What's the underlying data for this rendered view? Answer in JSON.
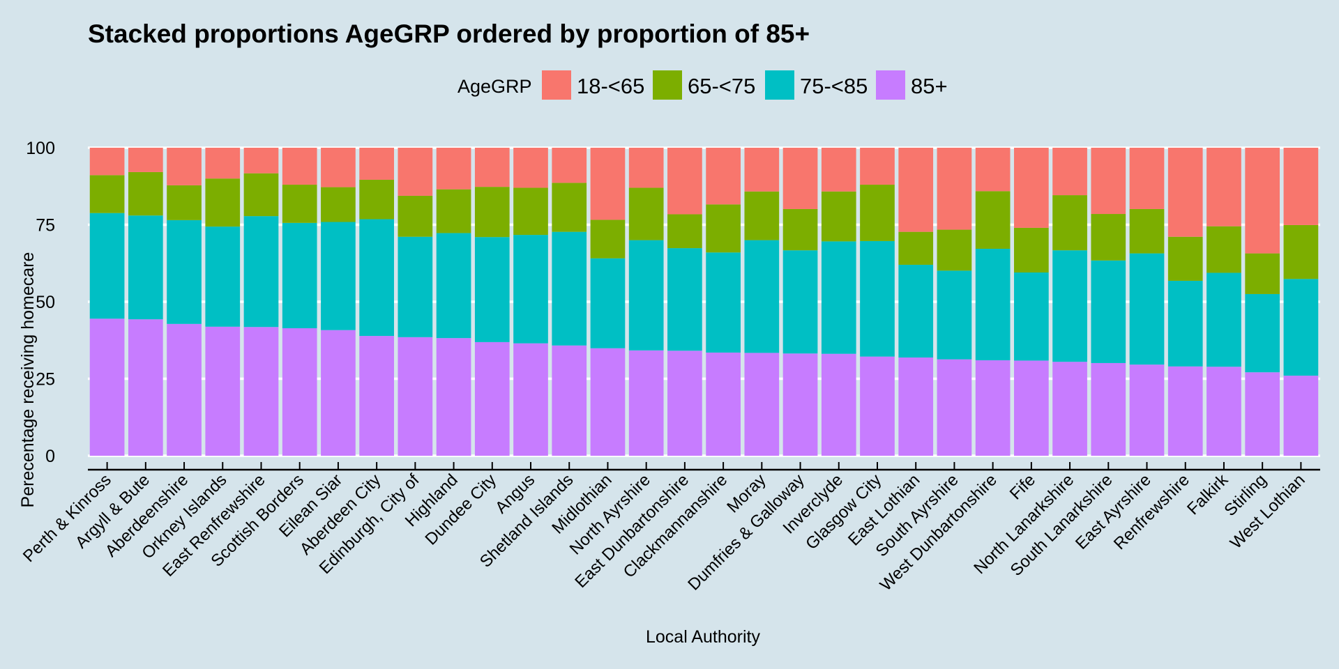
{
  "chart_data": {
    "type": "bar",
    "stacked": true,
    "title": "Stacked proportions AgeGRP ordered by proportion of 85+",
    "xlabel": "Local Authority",
    "ylabel": "Perecentage receiving homecare",
    "ylim": [
      0,
      100
    ],
    "yticks": [
      0,
      25,
      50,
      75,
      100
    ],
    "grid": true,
    "legend": {
      "title": "AgeGRP",
      "position": "top"
    },
    "categories": [
      "Perth & Kinross",
      "Argyll & Bute",
      "Aberdeenshire",
      "Orkney Islands",
      "East Renfrewshire",
      "Scottish Borders",
      "Eilean Siar",
      "Aberdeen City",
      "Edinburgh, City of",
      "Highland",
      "Dundee City",
      "Angus",
      "Shetland Islands",
      "Midlothian",
      "North Ayrshire",
      "East Dunbartonshire",
      "Clackmannanshire",
      "Moray",
      "Dumfries & Galloway",
      "Inverclyde",
      "Glasgow City",
      "East Lothian",
      "South Ayrshire",
      "West Dunbartonshire",
      "Fife",
      "North Lanarkshire",
      "South Lanarkshire",
      "East Ayrshire",
      "Renfrewshire",
      "Falkirk",
      "Stirling",
      "West Lothian"
    ],
    "series": [
      {
        "name": "85+",
        "color": "#c77cff",
        "values": [
          44.5,
          44.3,
          42.8,
          41.9,
          41.8,
          41.4,
          40.8,
          38.9,
          38.5,
          38.2,
          36.9,
          36.5,
          35.8,
          34.9,
          34.2,
          34.1,
          33.5,
          33.4,
          33.2,
          33.1,
          32.2,
          31.9,
          31.3,
          31.0,
          30.9,
          30.5,
          30.1,
          29.6,
          29.0,
          28.9,
          27.1,
          26.0
        ]
      },
      {
        "name": "75-<85",
        "color": "#00bfc4",
        "values": [
          34.3,
          33.7,
          33.7,
          32.5,
          36.0,
          34.2,
          35.1,
          37.9,
          32.6,
          34.1,
          34.1,
          35.2,
          36.9,
          29.2,
          35.8,
          33.3,
          32.5,
          36.6,
          33.5,
          36.5,
          37.5,
          30.1,
          28.8,
          36.2,
          28.6,
          36.2,
          33.3,
          36.1,
          27.8,
          30.5,
          25.4,
          31.4
        ]
      },
      {
        "name": "65-<75",
        "color": "#7cae00",
        "values": [
          12.3,
          14.1,
          11.3,
          15.6,
          13.9,
          12.4,
          11.3,
          12.8,
          13.3,
          14.2,
          16.3,
          15.3,
          15.9,
          12.5,
          17.0,
          11.0,
          15.6,
          15.8,
          13.4,
          16.2,
          18.3,
          10.7,
          13.3,
          18.7,
          14.5,
          17.9,
          15.1,
          14.4,
          14.3,
          15.1,
          13.2,
          17.5
        ]
      },
      {
        "name": "18-<65",
        "color": "#f8766d",
        "values": [
          8.9,
          7.9,
          12.2,
          10.0,
          8.3,
          12.0,
          12.8,
          10.4,
          15.6,
          13.5,
          12.7,
          13.0,
          11.4,
          23.4,
          13.0,
          21.6,
          18.4,
          14.2,
          19.9,
          14.2,
          12.0,
          27.3,
          26.6,
          14.1,
          26.0,
          15.4,
          21.5,
          19.9,
          28.9,
          25.5,
          34.3,
          25.1
        ]
      }
    ]
  }
}
